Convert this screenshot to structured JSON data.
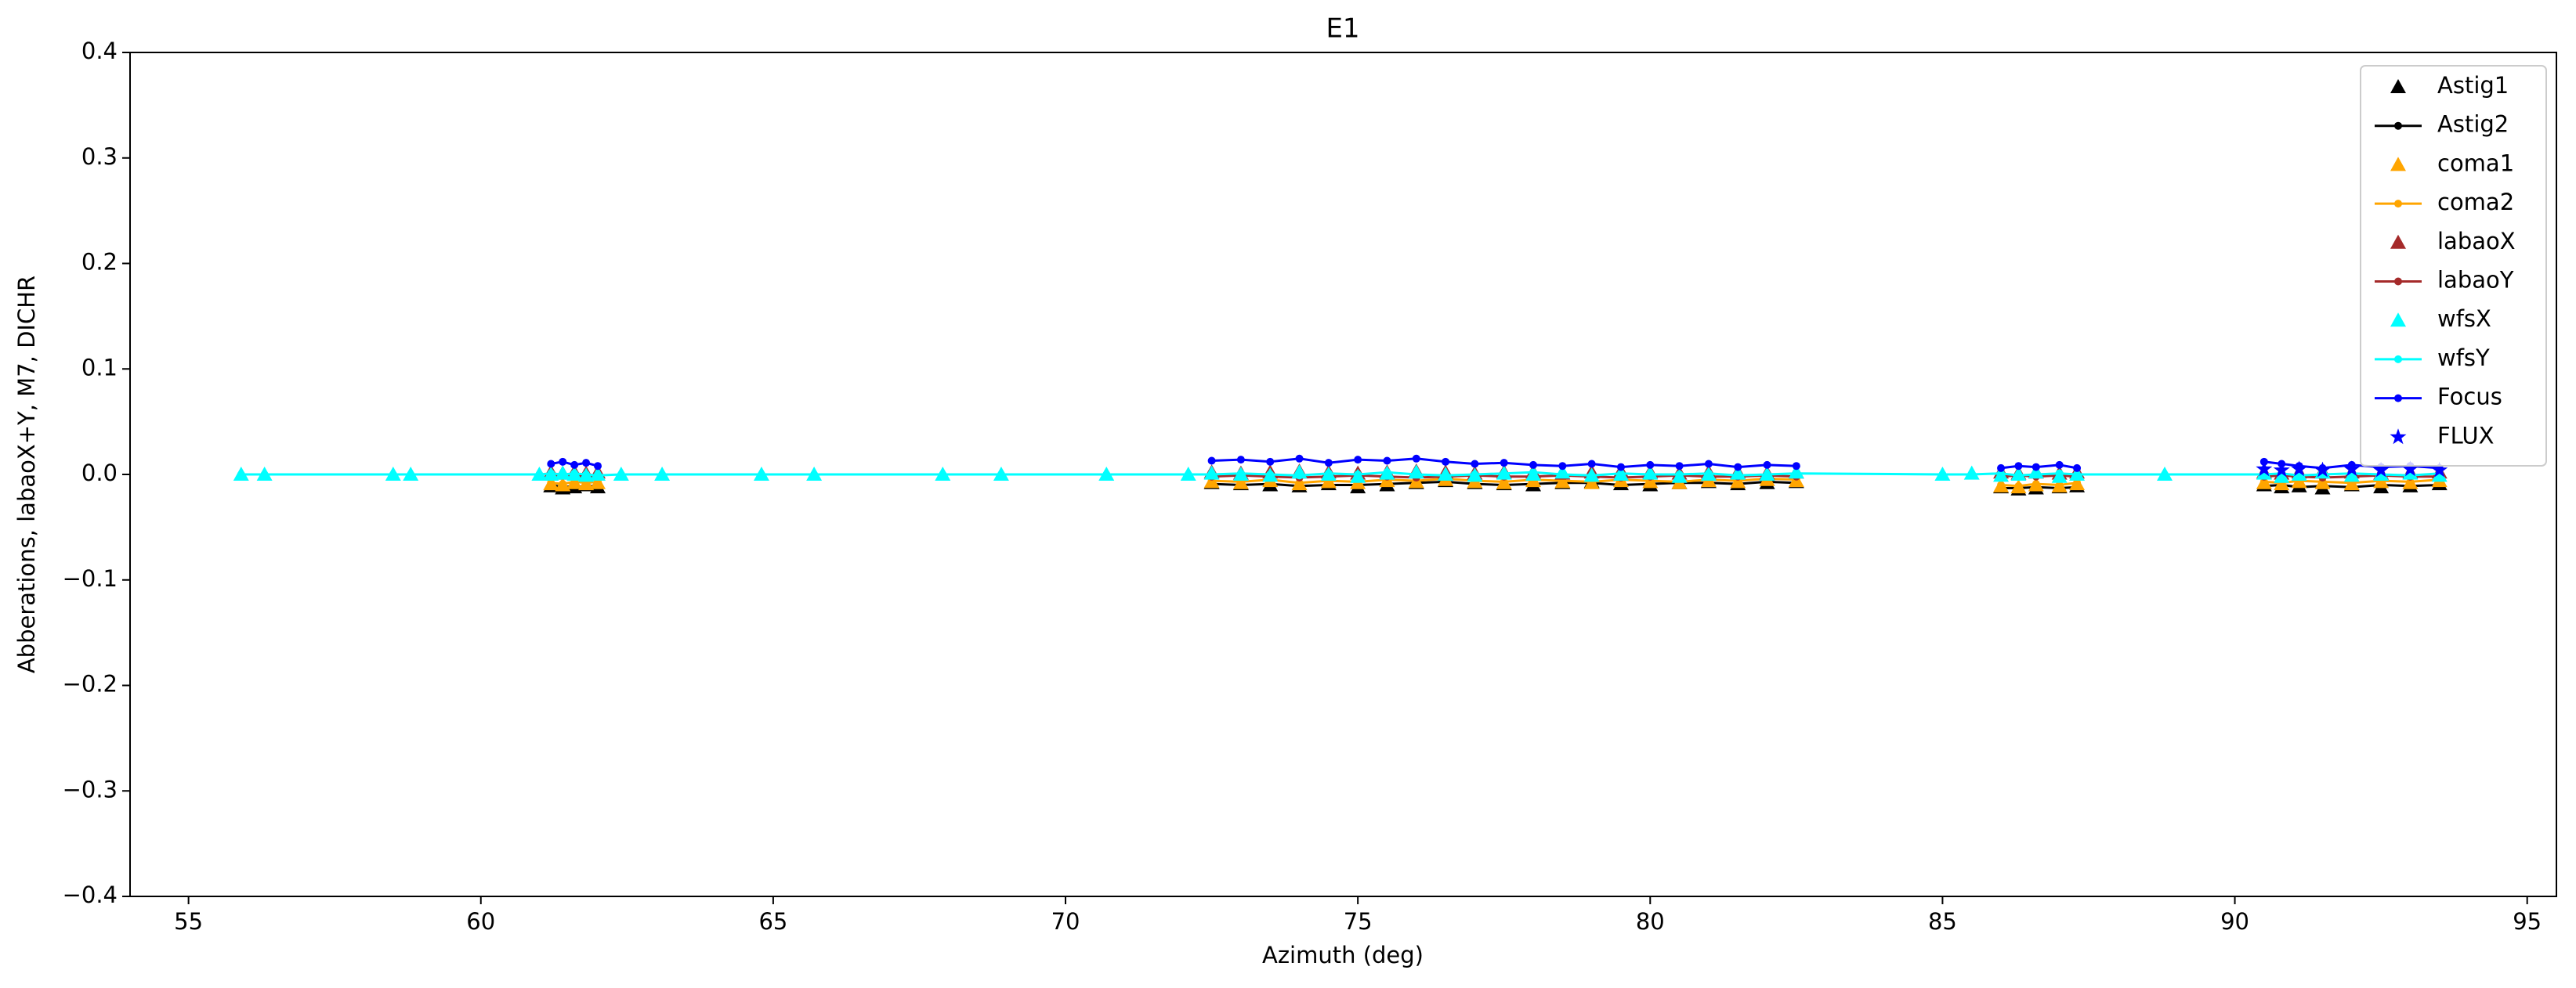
{
  "chart_data": {
    "type": "line",
    "title": "E1",
    "x_label": "Azimuth (deg)",
    "y_label": "Abberations, labaoX+Y, M7, DICHR",
    "xlim": [
      54,
      95.5
    ],
    "xticks": [
      55,
      60,
      65,
      70,
      75,
      80,
      85,
      90,
      95
    ],
    "ylim": [
      -0.4,
      0.4
    ],
    "yticks": [
      {
        "value": -0.4,
        "label": "−0.4"
      },
      {
        "value": -0.3,
        "label": "−0.3"
      },
      {
        "value": -0.2,
        "label": "−0.2"
      },
      {
        "value": -0.1,
        "label": "−0.1"
      },
      {
        "value": 0,
        "label": "0.0"
      },
      0.1,
      0.2,
      0.3,
      0.4
    ],
    "legend": "upper right",
    "x": [
      55.9,
      56.3,
      58.5,
      58.8,
      61.0,
      61.2,
      61.4,
      61.6,
      61.8,
      62.0,
      62.4,
      63.1,
      64.8,
      65.7,
      67.9,
      68.9,
      70.7,
      72.1,
      72.5,
      73.0,
      73.5,
      74.0,
      74.5,
      75.0,
      75.5,
      76.0,
      76.5,
      77.0,
      77.5,
      78.0,
      78.5,
      79.0,
      79.5,
      80.0,
      80.5,
      81.0,
      81.5,
      82.0,
      82.5,
      85.0,
      85.5,
      86.0,
      86.3,
      86.6,
      87.0,
      87.3,
      88.8,
      90.5,
      90.8,
      91.1,
      91.5,
      92.0,
      92.5,
      93.0,
      93.5
    ],
    "series": [
      {
        "name": "Astig1",
        "type": "scatter",
        "marker": "triangle",
        "color": "#000000",
        "values": [
          null,
          null,
          null,
          null,
          null,
          -0.011,
          -0.013,
          -0.012,
          -0.01,
          -0.012,
          null,
          null,
          null,
          null,
          null,
          null,
          null,
          null,
          -0.008,
          -0.009,
          -0.01,
          -0.011,
          -0.009,
          -0.012,
          -0.01,
          -0.008,
          -0.006,
          -0.008,
          -0.009,
          -0.01,
          -0.008,
          -0.007,
          -0.009,
          -0.01,
          -0.008,
          -0.007,
          -0.009,
          -0.008,
          -0.007,
          null,
          null,
          -0.012,
          -0.014,
          -0.013,
          -0.012,
          -0.011,
          null,
          -0.01,
          -0.012,
          -0.011,
          -0.013,
          -0.01,
          -0.012,
          -0.011,
          -0.009
        ]
      },
      {
        "name": "Astig2",
        "type": "line",
        "marker": "dot",
        "color": "#000000",
        "values": [
          null,
          null,
          null,
          null,
          null,
          -0.01,
          -0.012,
          -0.011,
          -0.012,
          -0.01,
          null,
          null,
          null,
          null,
          null,
          null,
          null,
          null,
          -0.009,
          -0.01,
          -0.009,
          -0.011,
          -0.01,
          -0.01,
          -0.009,
          -0.008,
          -0.007,
          -0.009,
          -0.01,
          -0.009,
          -0.008,
          -0.008,
          -0.01,
          -0.009,
          -0.008,
          -0.008,
          -0.009,
          -0.007,
          -0.008,
          null,
          null,
          -0.013,
          -0.013,
          -0.012,
          -0.013,
          -0.012,
          null,
          -0.011,
          -0.01,
          -0.012,
          -0.011,
          -0.012,
          -0.01,
          -0.011,
          -0.01
        ]
      },
      {
        "name": "coma1",
        "type": "scatter",
        "marker": "triangle",
        "color": "#ffa500",
        "values": [
          null,
          null,
          null,
          null,
          null,
          -0.009,
          -0.01,
          -0.008,
          -0.009,
          -0.008,
          null,
          null,
          null,
          null,
          null,
          null,
          null,
          null,
          -0.007,
          -0.008,
          -0.006,
          -0.009,
          -0.007,
          -0.008,
          -0.006,
          -0.007,
          -0.005,
          -0.007,
          -0.008,
          -0.006,
          -0.007,
          -0.008,
          -0.006,
          -0.007,
          -0.008,
          -0.006,
          -0.007,
          -0.005,
          -0.006,
          null,
          null,
          -0.011,
          -0.012,
          -0.01,
          -0.011,
          -0.009,
          null,
          -0.008,
          -0.009,
          -0.007,
          -0.008,
          -0.009,
          -0.007,
          -0.008,
          -0.006
        ]
      },
      {
        "name": "coma2",
        "type": "line",
        "marker": "dot",
        "color": "#ffa500",
        "values": [
          null,
          null,
          null,
          null,
          null,
          -0.008,
          -0.009,
          -0.007,
          -0.008,
          -0.007,
          null,
          null,
          null,
          null,
          null,
          null,
          null,
          null,
          -0.006,
          -0.007,
          -0.005,
          -0.008,
          -0.006,
          -0.007,
          -0.005,
          -0.006,
          -0.004,
          -0.006,
          -0.007,
          -0.005,
          -0.006,
          -0.007,
          -0.005,
          -0.006,
          -0.007,
          -0.005,
          -0.006,
          -0.004,
          -0.005,
          null,
          null,
          -0.01,
          -0.011,
          -0.009,
          -0.01,
          -0.008,
          null,
          -0.007,
          -0.008,
          -0.006,
          -0.007,
          -0.008,
          -0.006,
          -0.007,
          -0.005
        ]
      },
      {
        "name": "labaoX",
        "type": "scatter",
        "marker": "triangle",
        "color": "#a52a2a",
        "values": [
          null,
          null,
          null,
          null,
          null,
          0.002,
          0.001,
          0.002,
          0.001,
          0.002,
          null,
          null,
          null,
          null,
          null,
          null,
          null,
          null,
          0.002,
          0.001,
          0.002,
          0.003,
          0.002,
          0.001,
          0.002,
          0.003,
          0.002,
          0.001,
          0.002,
          0.002,
          0.001,
          0.002,
          0.003,
          0.002,
          0.001,
          0.002,
          0.002,
          0.001,
          0.002,
          null,
          null,
          0.002,
          0.001,
          0.002,
          0.001,
          0.002,
          null,
          0.002,
          0.001,
          0.002,
          0.003,
          0.002,
          0.001,
          0.002,
          0.002
        ]
      },
      {
        "name": "labaoY",
        "type": "line",
        "marker": "dot",
        "color": "#a52a2a",
        "values": [
          null,
          null,
          null,
          null,
          null,
          -0.002,
          -0.001,
          -0.002,
          -0.001,
          -0.002,
          null,
          null,
          null,
          null,
          null,
          null,
          null,
          null,
          -0.002,
          -0.001,
          -0.002,
          -0.003,
          -0.002,
          -0.001,
          -0.002,
          -0.003,
          -0.002,
          -0.001,
          -0.002,
          -0.002,
          -0.001,
          -0.002,
          -0.003,
          -0.002,
          -0.001,
          -0.002,
          -0.002,
          -0.001,
          -0.002,
          null,
          null,
          -0.002,
          -0.001,
          -0.002,
          -0.001,
          -0.002,
          null,
          -0.002,
          -0.001,
          -0.002,
          -0.003,
          -0.002,
          -0.001,
          -0.002,
          -0.002
        ]
      },
      {
        "name": "wfsX",
        "type": "scatter",
        "marker": "triangle",
        "color": "#00ffff",
        "values": [
          0,
          0,
          0,
          0,
          0,
          0,
          0.001,
          0,
          -0.001,
          0,
          0,
          0,
          0,
          0,
          0,
          0,
          0,
          0,
          0.001,
          0,
          -0.001,
          0.002,
          0,
          -0.002,
          0.001,
          0.002,
          0,
          -0.001,
          0.001,
          0,
          0.002,
          -0.001,
          0,
          0.001,
          -0.002,
          0,
          0.001,
          0,
          0.002,
          0,
          0.001,
          -0.001,
          0,
          0.002,
          -0.002,
          0,
          0,
          0.001,
          -0.002,
          0,
          0.002,
          -0.001,
          0,
          0.001,
          -0.001
        ]
      },
      {
        "name": "wfsY",
        "type": "line",
        "marker": "dot",
        "color": "#00ffff",
        "values": [
          0,
          0,
          0,
          0,
          0,
          0.001,
          0,
          0.001,
          0,
          -0.001,
          0,
          0,
          0,
          0,
          0,
          0,
          0,
          0,
          0,
          0.001,
          0,
          -0.001,
          0.001,
          0,
          0.002,
          0,
          -0.001,
          0,
          0.001,
          0.002,
          0,
          -0.001,
          0.001,
          0,
          0,
          0.001,
          -0.001,
          0,
          0.001,
          0,
          0,
          0.001,
          -0.001,
          0,
          0.001,
          0,
          0,
          0,
          0.001,
          -0.001,
          0,
          0.001,
          0,
          -0.001,
          0.001
        ]
      },
      {
        "name": "Focus",
        "type": "line",
        "marker": "dot",
        "color": "#0000ff",
        "values": [
          null,
          null,
          null,
          null,
          null,
          0.01,
          0.012,
          0.009,
          0.011,
          0.008,
          null,
          null,
          null,
          null,
          null,
          null,
          null,
          null,
          0.013,
          0.014,
          0.012,
          0.015,
          0.011,
          0.014,
          0.013,
          0.015,
          0.012,
          0.01,
          0.011,
          0.009,
          0.008,
          0.01,
          0.007,
          0.009,
          0.008,
          0.01,
          0.007,
          0.009,
          0.008,
          null,
          null,
          0.006,
          0.008,
          0.007,
          0.009,
          0.006,
          null,
          0.012,
          0.01,
          0.008,
          0.006,
          0.009,
          0.007,
          0.008,
          0.006
        ]
      },
      {
        "name": "FLUX",
        "type": "scatter",
        "marker": "star",
        "color": "#0000ff",
        "values": [
          null,
          null,
          null,
          null,
          null,
          null,
          null,
          null,
          null,
          null,
          null,
          null,
          null,
          null,
          null,
          null,
          null,
          null,
          null,
          null,
          null,
          null,
          null,
          null,
          null,
          null,
          null,
          null,
          null,
          null,
          null,
          null,
          null,
          null,
          null,
          null,
          null,
          null,
          null,
          null,
          null,
          null,
          null,
          null,
          null,
          null,
          null,
          0.005,
          0.004,
          0.005,
          0.004,
          0.005,
          0.004,
          0.005,
          0.004
        ]
      }
    ]
  }
}
